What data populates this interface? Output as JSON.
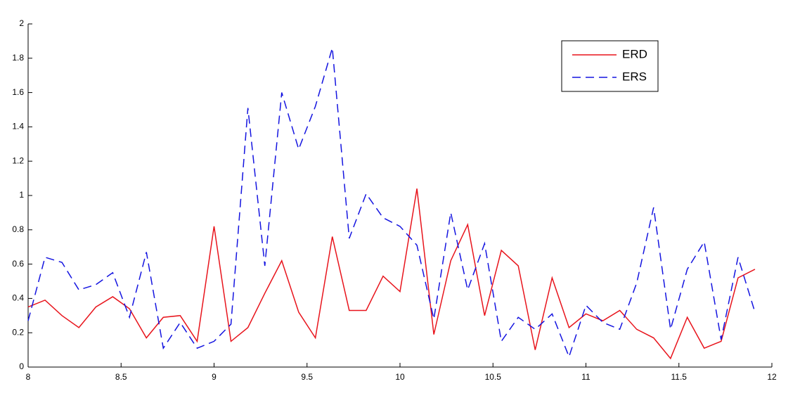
{
  "chart_data": {
    "type": "line",
    "x": [
      8,
      8.091,
      8.182,
      8.273,
      8.364,
      8.455,
      8.545,
      8.636,
      8.727,
      8.818,
      8.909,
      9,
      9.091,
      9.182,
      9.273,
      9.364,
      9.455,
      9.545,
      9.636,
      9.727,
      9.818,
      9.909,
      10,
      10.091,
      10.182,
      10.273,
      10.364,
      10.455,
      10.545,
      10.636,
      10.727,
      10.818,
      10.909,
      11,
      11.091,
      11.182,
      11.273,
      11.364,
      11.455,
      11.545,
      11.636,
      11.727,
      11.818,
      11.909
    ],
    "series": [
      {
        "name": "ERD",
        "color": "#e8141c",
        "linestyle": "solid",
        "values": [
          0.35,
          0.39,
          0.3,
          0.23,
          0.35,
          0.41,
          0.34,
          0.17,
          0.29,
          0.3,
          0.15,
          0.82,
          0.15,
          0.23,
          0.43,
          0.62,
          0.32,
          0.17,
          0.76,
          0.33,
          0.33,
          0.53,
          0.44,
          1.04,
          0.19,
          0.62,
          0.83,
          0.3,
          0.68,
          0.59,
          0.1,
          0.52,
          0.23,
          0.31,
          0.27,
          0.33,
          0.22,
          0.17,
          0.05,
          0.29,
          0.11,
          0.15,
          0.52,
          0.57
        ]
      },
      {
        "name": "ERS",
        "color": "#1414e0",
        "linestyle": "dashed",
        "values": [
          0.27,
          0.64,
          0.61,
          0.45,
          0.48,
          0.55,
          0.29,
          0.67,
          0.11,
          0.26,
          0.11,
          0.15,
          0.25,
          1.51,
          0.59,
          1.6,
          1.27,
          1.52,
          1.86,
          0.75,
          1.01,
          0.87,
          0.82,
          0.71,
          0.28,
          0.9,
          0.45,
          0.72,
          0.15,
          0.29,
          0.22,
          0.31,
          0.06,
          0.36,
          0.26,
          0.22,
          0.49,
          0.93,
          0.22,
          0.57,
          0.73,
          0.16,
          0.64,
          0.32
        ]
      }
    ],
    "xlim": [
      8,
      12
    ],
    "xticks": [
      8,
      8.5,
      9,
      9.5,
      10,
      10.5,
      11,
      11.5,
      12
    ],
    "ylim": [
      0,
      2
    ],
    "yticks": [
      0,
      0.2,
      0.4,
      0.6,
      0.8,
      1,
      1.2,
      1.4,
      1.6,
      1.8,
      2
    ],
    "legend": "northeast",
    "grid": false
  }
}
